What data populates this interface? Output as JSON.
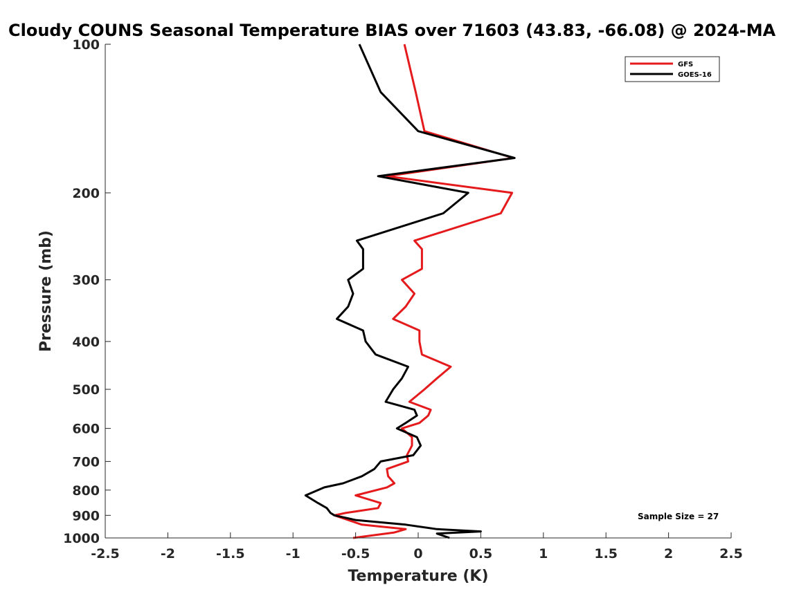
{
  "chart_data": {
    "type": "line",
    "title": "Cloudy COUNS Seasonal Temperature BIAS over 71603 (43.83, -66.08) @ 2024-MA",
    "xlabel": "Temperature (K)",
    "ylabel": "Pressure (mb)",
    "xlim": [
      -2.5,
      2.5
    ],
    "ylim": [
      100,
      1000
    ],
    "yscale": "log",
    "xticks": [
      -2.5,
      -2,
      -1.5,
      -1,
      -0.5,
      0,
      0.5,
      1,
      1.5,
      2,
      2.5
    ],
    "xtick_labels": [
      "-2.5",
      "-2",
      "-1.5",
      "-1",
      "-0.5",
      "0",
      "0.5",
      "1",
      "1.5",
      "2",
      "2.5"
    ],
    "yticks": [
      100,
      200,
      300,
      400,
      500,
      600,
      700,
      800,
      900,
      1000
    ],
    "ytick_labels": [
      "100",
      "200",
      "300",
      "400",
      "500",
      "600",
      "700",
      "800",
      "900",
      "1000"
    ],
    "legend_position": "top-right",
    "grid": false,
    "annotation": "Sample Size = 27",
    "series": [
      {
        "name": "GFS",
        "color": "#e41a1c",
        "points": [
          [
            -0.11,
            100
          ],
          [
            -0.02,
            125
          ],
          [
            0.05,
            150
          ],
          [
            0.76,
            170
          ],
          [
            -0.25,
            185
          ],
          [
            0.75,
            200
          ],
          [
            0.66,
            220
          ],
          [
            -0.03,
            250
          ],
          [
            0.03,
            260
          ],
          [
            0.03,
            285
          ],
          [
            -0.13,
            300
          ],
          [
            -0.03,
            320
          ],
          [
            -0.1,
            340
          ],
          [
            -0.2,
            360
          ],
          [
            0.01,
            380
          ],
          [
            0.01,
            400
          ],
          [
            0.03,
            425
          ],
          [
            0.26,
            450
          ],
          [
            0.15,
            475
          ],
          [
            0.05,
            500
          ],
          [
            -0.07,
            530
          ],
          [
            0.1,
            550
          ],
          [
            0.08,
            565
          ],
          [
            0.01,
            585
          ],
          [
            -0.13,
            600
          ],
          [
            -0.05,
            625
          ],
          [
            -0.05,
            650
          ],
          [
            -0.09,
            680
          ],
          [
            -0.08,
            700
          ],
          [
            -0.25,
            725
          ],
          [
            -0.24,
            750
          ],
          [
            -0.19,
            775
          ],
          [
            -0.25,
            790
          ],
          [
            -0.5,
            820
          ],
          [
            -0.3,
            850
          ],
          [
            -0.32,
            870
          ],
          [
            -0.58,
            890
          ],
          [
            -0.67,
            900
          ],
          [
            -0.45,
            940
          ],
          [
            -0.1,
            960
          ],
          [
            -0.19,
            975
          ],
          [
            -0.52,
            1000
          ]
        ]
      },
      {
        "name": "GOES-16",
        "color": "#000000",
        "points": [
          [
            -0.47,
            100
          ],
          [
            -0.3,
            125
          ],
          [
            0.0,
            150
          ],
          [
            0.77,
            170
          ],
          [
            -0.32,
            185
          ],
          [
            0.4,
            200
          ],
          [
            0.2,
            220
          ],
          [
            -0.49,
            250
          ],
          [
            -0.44,
            260
          ],
          [
            -0.44,
            285
          ],
          [
            -0.56,
            300
          ],
          [
            -0.52,
            320
          ],
          [
            -0.56,
            340
          ],
          [
            -0.65,
            360
          ],
          [
            -0.44,
            380
          ],
          [
            -0.42,
            400
          ],
          [
            -0.34,
            425
          ],
          [
            -0.08,
            450
          ],
          [
            -0.13,
            475
          ],
          [
            -0.2,
            500
          ],
          [
            -0.26,
            530
          ],
          [
            -0.03,
            550
          ],
          [
            -0.01,
            565
          ],
          [
            -0.1,
            585
          ],
          [
            -0.17,
            600
          ],
          [
            -0.01,
            625
          ],
          [
            0.02,
            650
          ],
          [
            -0.04,
            680
          ],
          [
            -0.3,
            700
          ],
          [
            -0.35,
            725
          ],
          [
            -0.45,
            750
          ],
          [
            -0.6,
            775
          ],
          [
            -0.75,
            790
          ],
          [
            -0.9,
            820
          ],
          [
            -0.8,
            850
          ],
          [
            -0.73,
            870
          ],
          [
            -0.7,
            890
          ],
          [
            -0.67,
            900
          ],
          [
            -0.5,
            920
          ],
          [
            -0.1,
            940
          ],
          [
            0.15,
            960
          ],
          [
            0.5,
            970
          ],
          [
            0.15,
            980
          ],
          [
            0.25,
            1000
          ]
        ]
      }
    ]
  }
}
